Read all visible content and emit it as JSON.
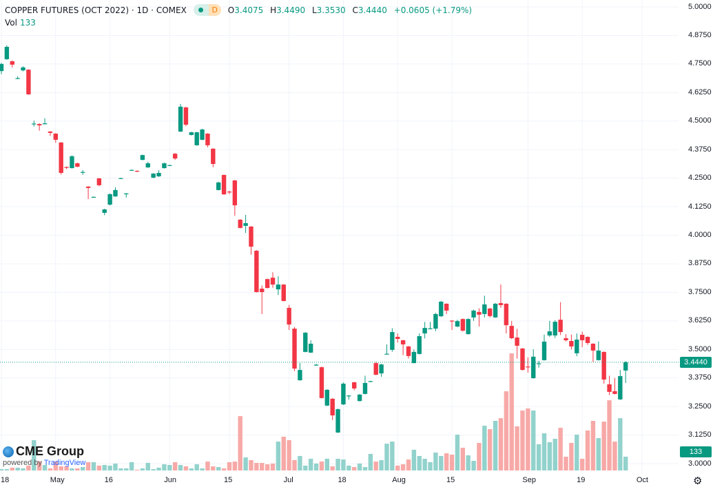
{
  "header": {
    "title": "COPPER FUTURES (OCT 2022) · 1D · COMEX",
    "badge": "D",
    "ohlc": [
      {
        "k": "O",
        "v": "3.4075"
      },
      {
        "k": "H",
        "v": "3.4490"
      },
      {
        "k": "L",
        "v": "3.3530"
      },
      {
        "k": "C",
        "v": "3.4440"
      }
    ],
    "change": "+0.0605 (+1.79%)",
    "vol_label": "Vol",
    "vol_value": "133"
  },
  "logo": {
    "brand": "CME Group",
    "powered_prefix": "powered by",
    "powered_brand": "TradingView"
  },
  "colors": {
    "up": "#089981",
    "down": "#f23645",
    "vol_up": "#92d2cc",
    "vol_down": "#f7a9a7",
    "grid": "#f0f3fa"
  },
  "icons": {
    "settings": "gear-icon"
  },
  "chart_data": {
    "type": "candlestick",
    "title": "COPPER FUTURES (OCT 2022) · 1D · COMEX",
    "ylabel": "",
    "ylim": [
      3.0,
      5.0
    ],
    "y_ticks": [
      "5.0000",
      "4.8750",
      "4.7500",
      "4.6250",
      "4.5000",
      "4.3750",
      "4.2500",
      "4.1250",
      "4.0000",
      "3.8750",
      "3.7500",
      "3.6250",
      "3.5000",
      "3.3750",
      "3.2500",
      "3.1250",
      "3.0000"
    ],
    "x_ticks": [
      {
        "label": "18",
        "index": 0
      },
      {
        "label": "May",
        "index": 10
      },
      {
        "label": "16",
        "index": 20
      },
      {
        "label": "Jun",
        "index": 31
      },
      {
        "label": "15",
        "index": 42
      },
      {
        "label": "Jul",
        "index": 53
      },
      {
        "label": "18",
        "index": 63
      },
      {
        "label": "Aug",
        "index": 73
      },
      {
        "label": "15",
        "index": 83
      },
      {
        "label": "Sep",
        "index": 97
      },
      {
        "label": "19",
        "index": 107
      },
      {
        "label": "Oct",
        "index": 118
      }
    ],
    "last_price": "3.4440",
    "last_volume": "133",
    "grid": true,
    "ohlc": [
      [
        4.719,
        4.755,
        4.705,
        4.75
      ],
      [
        4.771,
        4.832,
        4.768,
        4.825
      ],
      [
        4.762,
        4.765,
        4.735,
        4.747
      ],
      [
        4.686,
        4.696,
        4.684,
        4.688
      ],
      [
        4.722,
        4.74,
        4.718,
        4.735
      ],
      [
        4.725,
        4.727,
        4.615,
        4.617
      ],
      [
        4.486,
        4.502,
        4.476,
        4.489
      ],
      [
        4.487,
        4.49,
        4.458,
        4.481
      ],
      [
        4.486,
        4.512,
        4.486,
        4.49
      ],
      [
        4.454,
        4.456,
        4.435,
        4.448
      ],
      [
        4.445,
        4.447,
        4.405,
        4.418
      ],
      [
        4.406,
        4.408,
        4.266,
        4.273
      ],
      [
        4.299,
        4.301,
        4.29,
        4.295
      ],
      [
        4.294,
        4.35,
        4.292,
        4.346
      ],
      [
        4.315,
        4.318,
        4.298,
        4.3
      ],
      [
        4.274,
        4.285,
        4.265,
        4.277
      ],
      [
        4.213,
        4.215,
        4.158,
        4.207
      ],
      [
        4.166,
        4.17,
        4.165,
        4.168
      ],
      [
        4.249,
        4.251,
        4.215,
        4.219
      ],
      [
        4.098,
        4.116,
        4.088,
        4.113
      ],
      [
        4.134,
        4.183,
        4.13,
        4.18
      ],
      [
        4.17,
        4.21,
        4.168,
        4.198
      ],
      [
        4.248,
        4.252,
        4.247,
        4.25
      ],
      [
        4.181,
        4.185,
        4.165,
        4.183
      ],
      [
        4.284,
        4.288,
        4.283,
        4.286
      ],
      [
        4.282,
        4.284,
        4.276,
        4.279
      ],
      [
        4.33,
        4.353,
        4.328,
        4.351
      ],
      [
        4.297,
        4.322,
        4.295,
        4.315
      ],
      [
        4.252,
        4.272,
        4.25,
        4.27
      ],
      [
        4.258,
        4.285,
        4.255,
        4.273
      ],
      [
        4.294,
        4.318,
        4.292,
        4.315
      ],
      [
        4.305,
        4.309,
        4.304,
        4.307
      ],
      [
        4.357,
        4.36,
        4.33,
        4.336
      ],
      [
        4.454,
        4.575,
        4.452,
        4.563
      ],
      [
        4.56,
        4.562,
        4.478,
        4.484
      ],
      [
        4.439,
        4.453,
        4.437,
        4.451
      ],
      [
        4.394,
        4.453,
        4.392,
        4.451
      ],
      [
        4.418,
        4.466,
        4.416,
        4.463
      ],
      [
        4.445,
        4.447,
        4.385,
        4.394
      ],
      [
        4.379,
        4.381,
        4.298,
        4.312
      ],
      [
        4.198,
        4.234,
        4.196,
        4.231
      ],
      [
        4.264,
        4.266,
        4.177,
        4.179
      ],
      [
        4.191,
        4.195,
        4.18,
        4.189
      ],
      [
        4.24,
        4.242,
        4.085,
        4.131
      ],
      [
        4.068,
        4.071,
        4.03,
        4.032
      ],
      [
        4.041,
        4.089,
        4.01,
        4.053
      ],
      [
        4.038,
        4.04,
        3.915,
        3.95
      ],
      [
        3.932,
        3.935,
        3.749,
        3.751
      ],
      [
        3.766,
        3.78,
        3.655,
        3.751
      ],
      [
        3.808,
        3.81,
        3.767,
        3.769
      ],
      [
        3.814,
        3.838,
        3.77,
        3.784
      ],
      [
        3.763,
        3.82,
        3.738,
        3.784
      ],
      [
        3.784,
        3.786,
        3.71,
        3.712
      ],
      [
        3.682,
        3.695,
        3.585,
        3.609
      ],
      [
        3.591,
        3.598,
        3.405,
        3.416
      ],
      [
        3.365,
        3.44,
        3.363,
        3.41
      ],
      [
        3.489,
        3.576,
        3.487,
        3.573
      ],
      [
        3.486,
        3.54,
        3.484,
        3.525
      ],
      [
        3.431,
        3.437,
        3.428,
        3.433
      ],
      [
        3.422,
        3.425,
        3.285,
        3.287
      ],
      [
        3.254,
        3.326,
        3.252,
        3.323
      ],
      [
        3.284,
        3.286,
        3.19,
        3.211
      ],
      [
        3.136,
        3.241,
        3.134,
        3.238
      ],
      [
        3.259,
        3.355,
        3.257,
        3.35
      ],
      [
        3.296,
        3.3,
        3.28,
        3.298
      ],
      [
        3.356,
        3.358,
        3.321,
        3.329
      ],
      [
        3.274,
        3.305,
        3.272,
        3.302
      ],
      [
        3.305,
        3.385,
        3.303,
        3.353
      ],
      [
        3.358,
        3.363,
        3.357,
        3.361
      ],
      [
        3.44,
        3.445,
        3.387,
        3.389
      ],
      [
        3.395,
        3.437,
        3.38,
        3.434
      ],
      [
        3.479,
        3.522,
        3.478,
        3.481
      ],
      [
        3.498,
        3.593,
        3.49,
        3.576
      ],
      [
        3.555,
        3.57,
        3.53,
        3.546
      ],
      [
        3.54,
        3.542,
        3.475,
        3.522
      ],
      [
        3.513,
        3.515,
        3.46,
        3.471
      ],
      [
        3.44,
        3.5,
        3.44,
        3.489
      ],
      [
        3.48,
        3.57,
        3.478,
        3.558
      ],
      [
        3.57,
        3.62,
        3.548,
        3.594
      ],
      [
        3.59,
        3.62,
        3.588,
        3.592
      ],
      [
        3.591,
        3.66,
        3.58,
        3.655
      ],
      [
        3.645,
        3.712,
        3.643,
        3.709
      ],
      [
        3.7,
        3.702,
        3.655,
        3.67
      ],
      [
        3.626,
        3.628,
        3.585,
        3.623
      ],
      [
        3.6,
        3.63,
        3.598,
        3.624
      ],
      [
        3.633,
        3.636,
        3.578,
        3.582
      ],
      [
        3.567,
        3.636,
        3.565,
        3.633
      ],
      [
        3.64,
        3.674,
        3.625,
        3.67
      ],
      [
        3.664,
        3.68,
        3.6,
        3.652
      ],
      [
        3.655,
        3.735,
        3.64,
        3.697
      ],
      [
        3.679,
        3.682,
        3.64,
        3.646
      ],
      [
        3.64,
        3.703,
        3.638,
        3.7
      ],
      [
        3.703,
        3.784,
        3.682,
        3.694
      ],
      [
        3.7,
        3.702,
        3.57,
        3.606
      ],
      [
        3.603,
        3.625,
        3.545,
        3.549
      ],
      [
        3.552,
        3.59,
        3.46,
        3.516
      ],
      [
        3.504,
        3.506,
        3.408,
        3.41
      ],
      [
        3.425,
        3.465,
        3.398,
        3.422
      ],
      [
        3.374,
        3.5,
        3.372,
        3.468
      ],
      [
        3.437,
        3.45,
        3.42,
        3.439
      ],
      [
        3.453,
        3.565,
        3.451,
        3.534
      ],
      [
        3.561,
        3.625,
        3.555,
        3.579
      ],
      [
        3.561,
        3.628,
        3.55,
        3.621
      ],
      [
        3.63,
        3.707,
        3.563,
        3.576
      ],
      [
        3.549,
        3.567,
        3.535,
        3.54
      ],
      [
        3.537,
        3.565,
        3.5,
        3.513
      ],
      [
        3.483,
        3.57,
        3.47,
        3.543
      ],
      [
        3.564,
        3.578,
        3.51,
        3.54
      ],
      [
        3.555,
        3.557,
        3.52,
        3.528
      ],
      [
        3.525,
        3.527,
        3.445,
        3.495
      ],
      [
        3.453,
        3.535,
        3.451,
        3.495
      ],
      [
        3.489,
        3.491,
        3.35,
        3.368
      ],
      [
        3.347,
        3.385,
        3.3,
        3.314
      ],
      [
        3.317,
        3.375,
        3.303,
        3.305
      ],
      [
        3.281,
        3.41,
        3.279,
        3.383
      ],
      [
        3.4075,
        3.449,
        3.353,
        3.444
      ]
    ],
    "volume": [
      13,
      13,
      27,
      27,
      20,
      47,
      293,
      86,
      53,
      20,
      86,
      40,
      40,
      20,
      20,
      33,
      80,
      80,
      47,
      53,
      47,
      67,
      20,
      20,
      80,
      7,
      20,
      73,
      13,
      27,
      60,
      53,
      80,
      53,
      40,
      20,
      60,
      20,
      86,
      40,
      33,
      20,
      80,
      86,
      525,
      126,
      100,
      73,
      73,
      60,
      67,
      279,
      326,
      293,
      100,
      140,
      47,
      113,
      67,
      86,
      113,
      40,
      113,
      106,
      47,
      33,
      67,
      33,
      160,
      86,
      100,
      259,
      279,
      47,
      60,
      106,
      200,
      140,
      113,
      80,
      173,
      140,
      166,
      153,
      346,
      219,
      146,
      93,
      266,
      432,
      399,
      479,
      505,
      765,
      1131,
      426,
      579,
      599,
      579,
      253,
      359,
      273,
      306,
      412,
      133,
      266,
      346,
      113,
      386,
      479,
      313,
      472,
      678,
      279,
      505,
      133
    ]
  }
}
